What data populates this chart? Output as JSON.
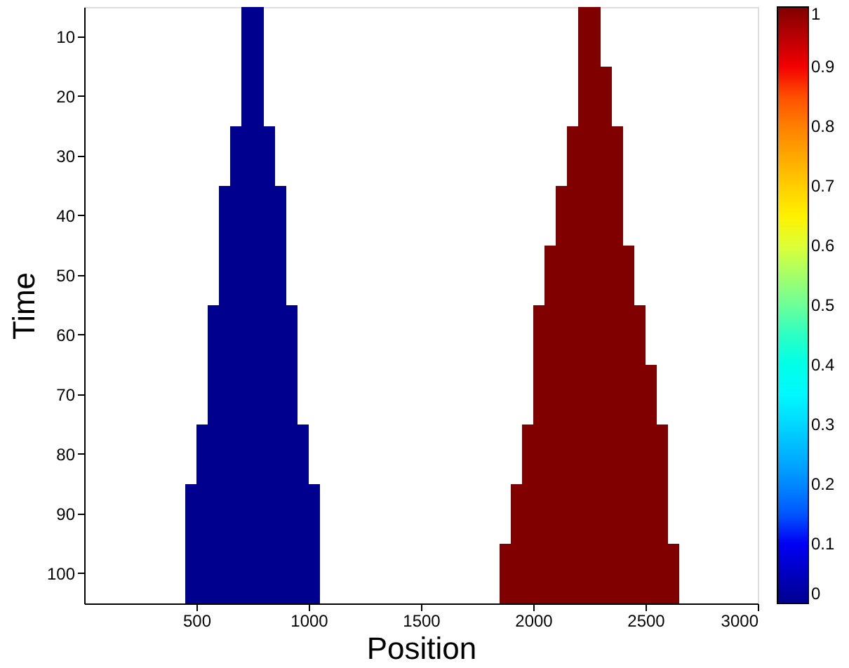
{
  "chart_data": {
    "type": "heatmap",
    "xlabel": "Position",
    "ylabel": "Time",
    "x": [
      25,
      75,
      125,
      175,
      225,
      275,
      325,
      375,
      425,
      475,
      525,
      575,
      625,
      675,
      725,
      775,
      825,
      875,
      925,
      975,
      1025,
      1075,
      1125,
      1175,
      1225,
      1275,
      1325,
      1375,
      1425,
      1475,
      1525,
      1575,
      1625,
      1675,
      1725,
      1775,
      1825,
      1875,
      1925,
      1975,
      2025,
      2075,
      2125,
      2175,
      2225,
      2275,
      2325,
      2375,
      2425,
      2475,
      2525,
      2575,
      2625,
      2675,
      2725,
      2775,
      2825,
      2875,
      2925,
      2975
    ],
    "y_categories": [
      "10",
      "20",
      "30",
      "40",
      "50",
      "60",
      "70",
      "80",
      "90",
      "100"
    ],
    "cells": [
      [
        null,
        null,
        null,
        null,
        null,
        null,
        null,
        null,
        null,
        null,
        null,
        null,
        null,
        null,
        0,
        0,
        null,
        null,
        null,
        null,
        null,
        null,
        null,
        null,
        null,
        null,
        null,
        null,
        null,
        null,
        null,
        null,
        null,
        null,
        null,
        null,
        null,
        null,
        null,
        null,
        null,
        null,
        null,
        null,
        1,
        1,
        null,
        null,
        null,
        null,
        null,
        null,
        null,
        null,
        null,
        null,
        null,
        null,
        null,
        null
      ],
      [
        null,
        null,
        null,
        null,
        null,
        null,
        null,
        null,
        null,
        null,
        null,
        null,
        null,
        null,
        0,
        0,
        null,
        null,
        null,
        null,
        null,
        null,
        null,
        null,
        null,
        null,
        null,
        null,
        null,
        null,
        null,
        null,
        null,
        null,
        null,
        null,
        null,
        null,
        null,
        null,
        null,
        null,
        null,
        null,
        1,
        1,
        1,
        null,
        null,
        null,
        null,
        null,
        null,
        null,
        null,
        null,
        null,
        null,
        null,
        null
      ],
      [
        null,
        null,
        null,
        null,
        null,
        null,
        null,
        null,
        null,
        null,
        null,
        null,
        null,
        0,
        0,
        0,
        0,
        null,
        null,
        null,
        null,
        null,
        null,
        null,
        null,
        null,
        null,
        null,
        null,
        null,
        null,
        null,
        null,
        null,
        null,
        null,
        null,
        null,
        null,
        null,
        null,
        null,
        null,
        1,
        1,
        1,
        1,
        1,
        null,
        null,
        null,
        null,
        null,
        null,
        null,
        null,
        null,
        null,
        null,
        null
      ],
      [
        null,
        null,
        null,
        null,
        null,
        null,
        null,
        null,
        null,
        null,
        null,
        null,
        0,
        0,
        0,
        0,
        0,
        0,
        null,
        null,
        null,
        null,
        null,
        null,
        null,
        null,
        null,
        null,
        null,
        null,
        null,
        null,
        null,
        null,
        null,
        null,
        null,
        null,
        null,
        null,
        null,
        null,
        1,
        1,
        1,
        1,
        1,
        1,
        null,
        null,
        null,
        null,
        null,
        null,
        null,
        null,
        null,
        null,
        null,
        null
      ],
      [
        null,
        null,
        null,
        null,
        null,
        null,
        null,
        null,
        null,
        null,
        null,
        null,
        0,
        0,
        0,
        0,
        0,
        0,
        null,
        null,
        null,
        null,
        null,
        null,
        null,
        null,
        null,
        null,
        null,
        null,
        null,
        null,
        null,
        null,
        null,
        null,
        null,
        null,
        null,
        null,
        null,
        1,
        1,
        1,
        1,
        1,
        1,
        1,
        1,
        null,
        null,
        null,
        null,
        null,
        null,
        null,
        null,
        null,
        null,
        null
      ],
      [
        null,
        null,
        null,
        null,
        null,
        null,
        null,
        null,
        null,
        null,
        null,
        0,
        0,
        0,
        0,
        0,
        0,
        0,
        0,
        null,
        null,
        null,
        null,
        null,
        null,
        null,
        null,
        null,
        null,
        null,
        null,
        null,
        null,
        null,
        null,
        null,
        null,
        null,
        null,
        null,
        1,
        1,
        1,
        1,
        1,
        1,
        1,
        1,
        1,
        1,
        null,
        null,
        null,
        null,
        null,
        null,
        null,
        null,
        null,
        null
      ],
      [
        null,
        null,
        null,
        null,
        null,
        null,
        null,
        null,
        null,
        null,
        null,
        0,
        0,
        0,
        0,
        0,
        0,
        0,
        0,
        null,
        null,
        null,
        null,
        null,
        null,
        null,
        null,
        null,
        null,
        null,
        null,
        null,
        null,
        null,
        null,
        null,
        null,
        null,
        null,
        null,
        1,
        1,
        1,
        1,
        1,
        1,
        1,
        1,
        1,
        1,
        1,
        null,
        null,
        null,
        null,
        null,
        null,
        null,
        null,
        null
      ],
      [
        null,
        null,
        null,
        null,
        null,
        null,
        null,
        null,
        null,
        null,
        0,
        0,
        0,
        0,
        0,
        0,
        0,
        0,
        0,
        0,
        null,
        null,
        null,
        null,
        null,
        null,
        null,
        null,
        null,
        null,
        null,
        null,
        null,
        null,
        null,
        null,
        null,
        null,
        null,
        1,
        1,
        1,
        1,
        1,
        1,
        1,
        1,
        1,
        1,
        1,
        1,
        1,
        null,
        null,
        null,
        null,
        null,
        null,
        null,
        null
      ],
      [
        null,
        null,
        null,
        null,
        null,
        null,
        null,
        null,
        null,
        0,
        0,
        0,
        0,
        0,
        0,
        0,
        0,
        0,
        0,
        0,
        0,
        null,
        null,
        null,
        null,
        null,
        null,
        null,
        null,
        null,
        null,
        null,
        null,
        null,
        null,
        null,
        null,
        null,
        1,
        1,
        1,
        1,
        1,
        1,
        1,
        1,
        1,
        1,
        1,
        1,
        1,
        1,
        null,
        null,
        null,
        null,
        null,
        null,
        null,
        null
      ],
      [
        null,
        null,
        null,
        null,
        null,
        null,
        null,
        null,
        null,
        0,
        0,
        0,
        0,
        0,
        0,
        0,
        0,
        0,
        0,
        0,
        0,
        null,
        null,
        null,
        null,
        null,
        null,
        null,
        null,
        null,
        null,
        null,
        null,
        null,
        null,
        null,
        null,
        1,
        1,
        1,
        1,
        1,
        1,
        1,
        1,
        1,
        1,
        1,
        1,
        1,
        1,
        1,
        1,
        null,
        null,
        null,
        null,
        null,
        null,
        null
      ]
    ],
    "xlim": [
      0,
      3000
    ],
    "xticks": [
      500,
      1000,
      1500,
      2000,
      2500,
      3000
    ],
    "clim": [
      0,
      1
    ],
    "cticks": [
      0,
      0.1,
      0.2,
      0.3,
      0.4,
      0.5,
      0.6,
      0.7,
      0.8,
      0.9,
      1
    ]
  }
}
